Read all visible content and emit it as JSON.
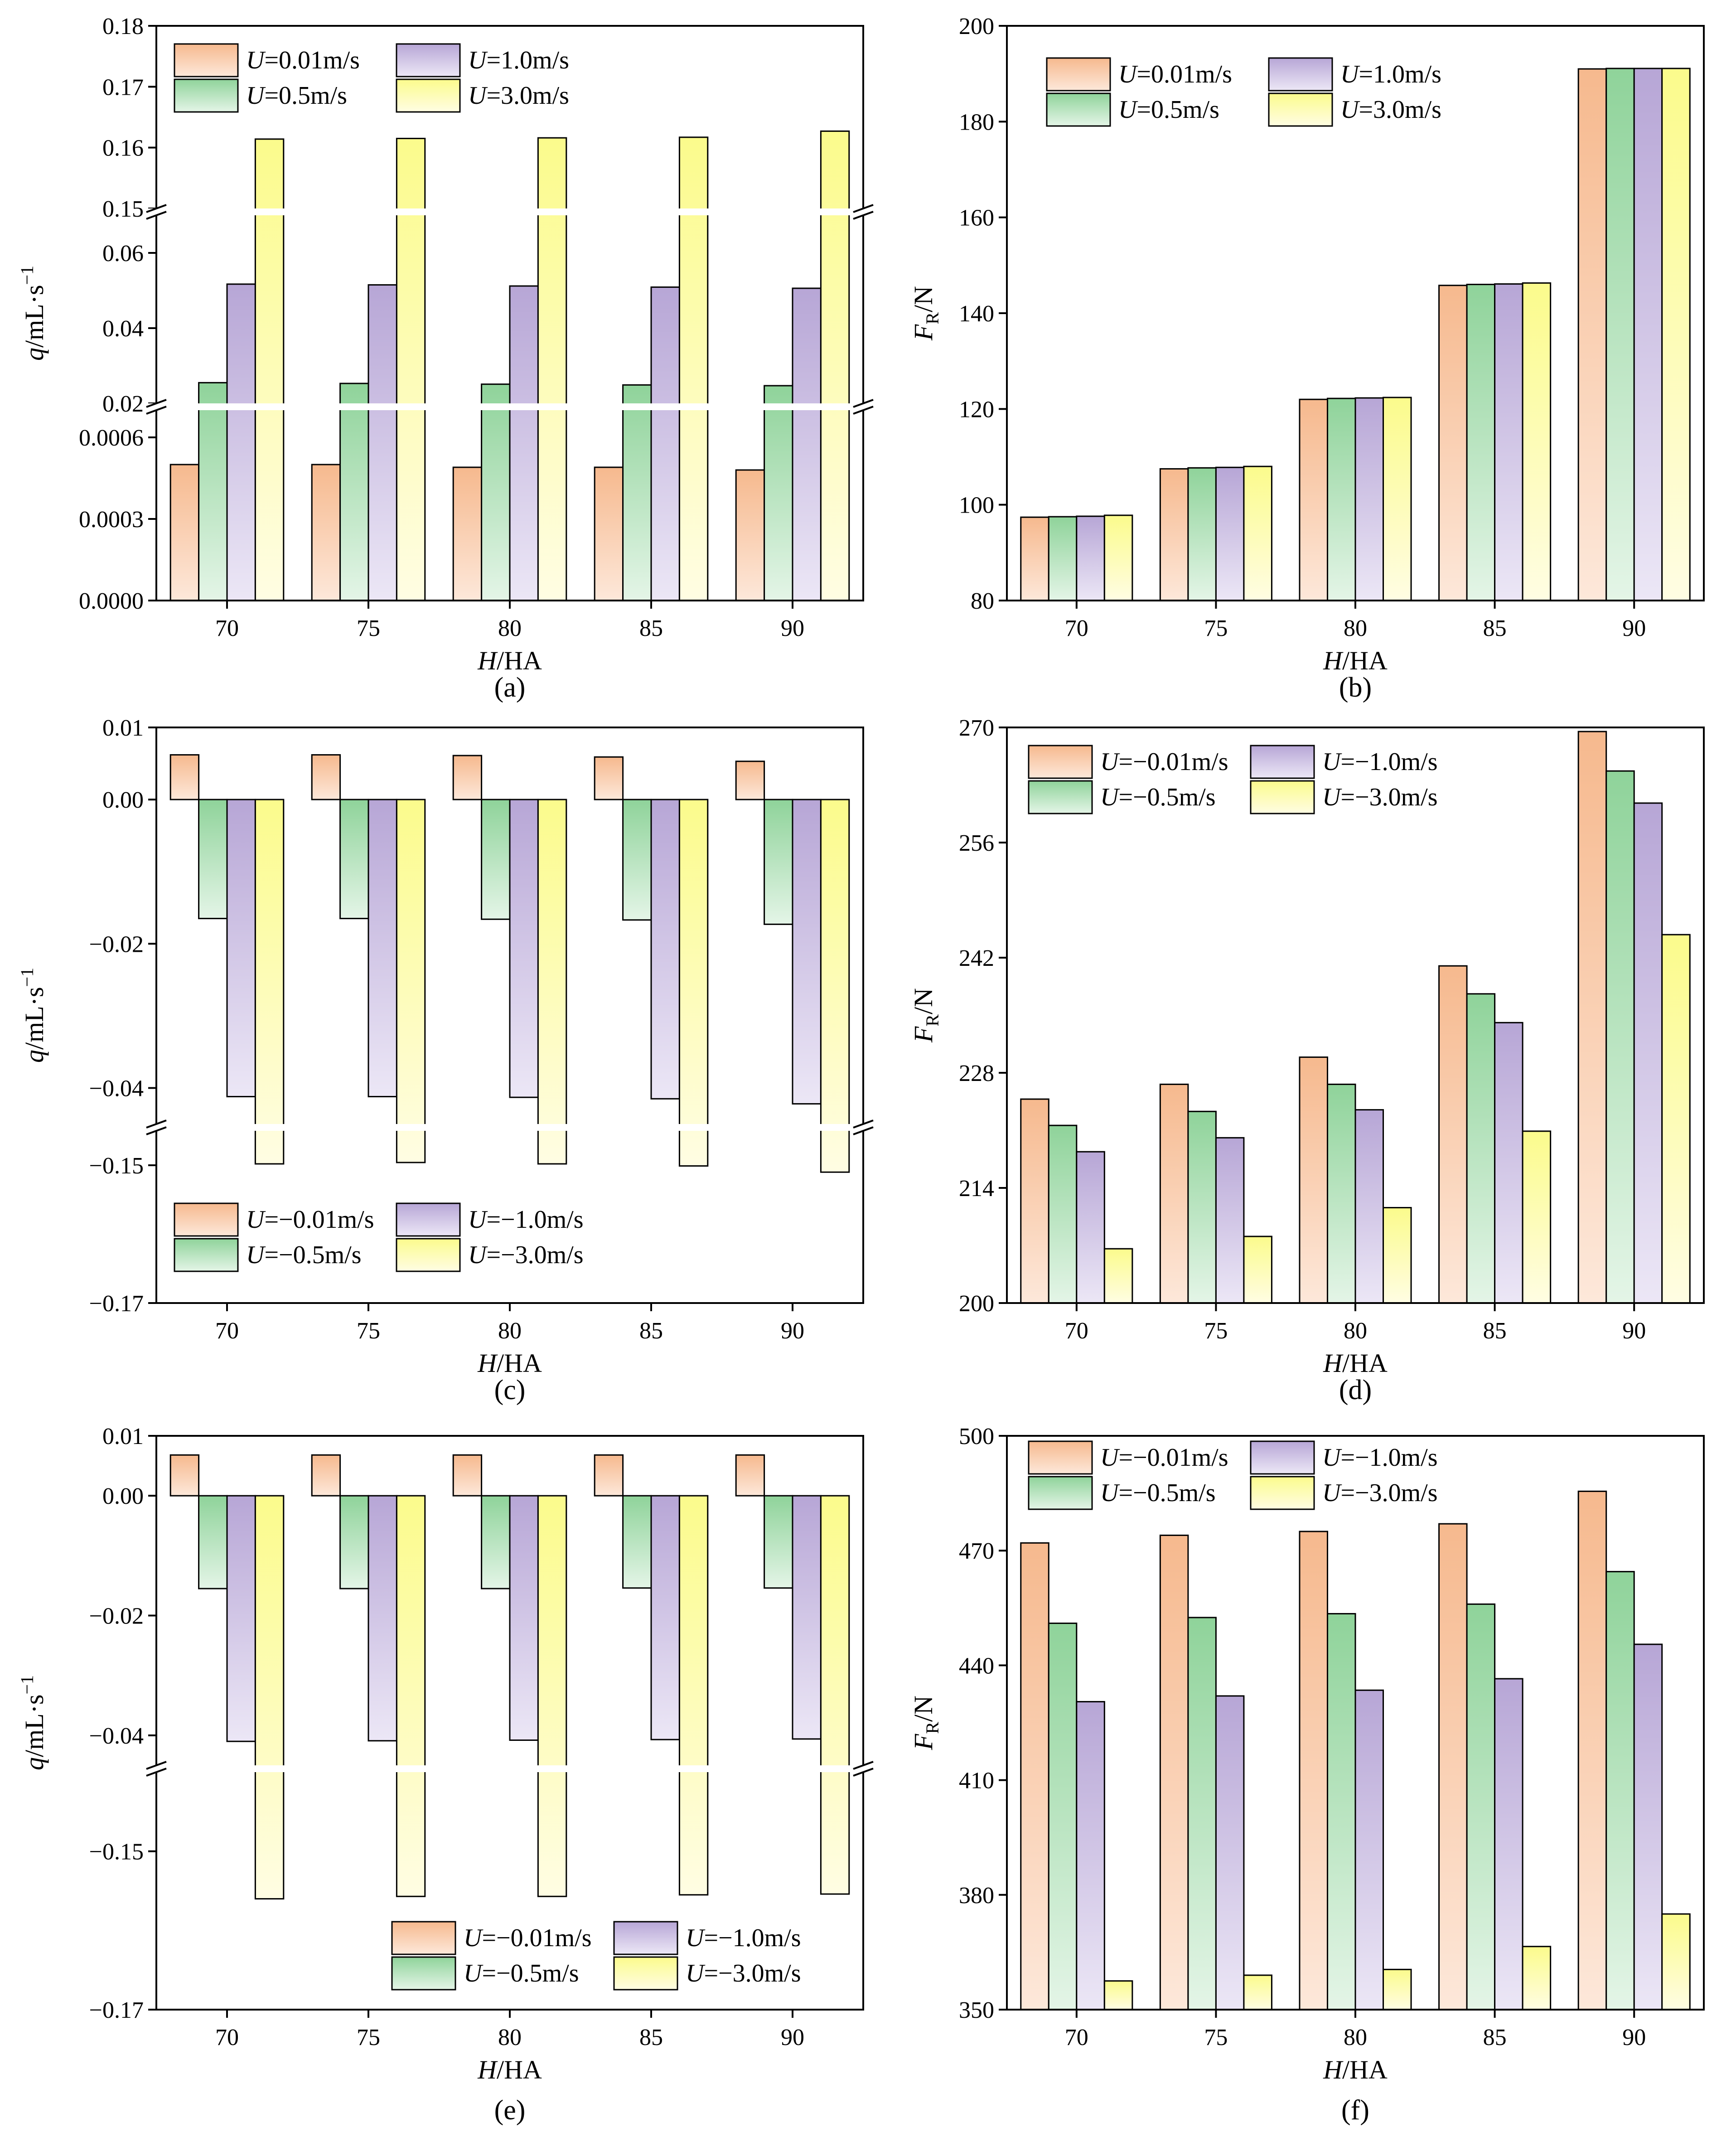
{
  "figure": {
    "fill_colors": {
      "U0.01": [
        "#f6b98e",
        "#fde8da"
      ],
      "U0.5": [
        "#8fd39a",
        "#e4f5e7"
      ],
      "U1.0": [
        "#b7a6d6",
        "#ece7f6"
      ],
      "U3.0": [
        "#fbfb8c",
        "#fffde3"
      ]
    }
  },
  "chart_data": [
    {
      "id": "a",
      "type": "bar",
      "caption": "(a)",
      "xlabel": "H/HA",
      "ylabel": "q/mL·s−1",
      "categories": [
        "70",
        "75",
        "80",
        "85",
        "90"
      ],
      "broken_axis": true,
      "ylim_segments": [
        [
          0,
          0.0007
        ],
        [
          0.02,
          0.07
        ],
        [
          0.15,
          0.18
        ]
      ],
      "yticks": [
        "0.0000",
        "0.0003",
        "0.0006",
        "0.02",
        "0.04",
        "0.06",
        "0.15",
        "0.16",
        "0.17",
        "0.18"
      ],
      "legend_position": "top-left",
      "series": [
        {
          "name": "U=0.01m/s",
          "values": [
            0.0005,
            0.0005,
            0.00049,
            0.00049,
            0.00048
          ]
        },
        {
          "name": "U=0.5m/s",
          "values": [
            0.0255,
            0.0253,
            0.0251,
            0.0249,
            0.0247
          ]
        },
        {
          "name": "U=1.0m/s",
          "values": [
            0.0517,
            0.0515,
            0.0512,
            0.0509,
            0.0506
          ]
        },
        {
          "name": "U=3.0m/s",
          "values": [
            0.1614,
            0.1615,
            0.1616,
            0.1617,
            0.1627
          ]
        }
      ]
    },
    {
      "id": "b",
      "type": "bar",
      "caption": "(b)",
      "xlabel": "H/HA",
      "ylabel": "FR/N",
      "categories": [
        "70",
        "75",
        "80",
        "85",
        "90"
      ],
      "ylim": [
        80,
        200
      ],
      "yticks": [
        "80",
        "100",
        "120",
        "140",
        "160",
        "180",
        "200"
      ],
      "legend_position": "top-left",
      "series": [
        {
          "name": "U=0.01m/s",
          "values": [
            97.4,
            107.5,
            122.0,
            145.8,
            191.0
          ]
        },
        {
          "name": "U=0.5m/s",
          "values": [
            97.5,
            107.7,
            122.2,
            146.0,
            191.1
          ]
        },
        {
          "name": "U=1.0m/s",
          "values": [
            97.6,
            107.8,
            122.3,
            146.1,
            191.1
          ]
        },
        {
          "name": "U=3.0m/s",
          "values": [
            97.8,
            108.0,
            122.4,
            146.3,
            191.1
          ]
        }
      ]
    },
    {
      "id": "c",
      "type": "bar",
      "caption": "(c)",
      "xlabel": "H/HA",
      "ylabel": "q/mL·s−1",
      "categories": [
        "70",
        "75",
        "80",
        "85",
        "90"
      ],
      "broken_axis": true,
      "ylim_segments": [
        [
          -0.17,
          -0.145
        ],
        [
          -0.045,
          0.01
        ]
      ],
      "yticks": [
        "0.01",
        "0.00",
        "−0.02",
        "−0.04",
        "−0.15",
        "−0.17"
      ],
      "legend_position": "bottom-left",
      "series": [
        {
          "name": "U=−0.01m/s",
          "values": [
            0.0062,
            0.0062,
            0.0061,
            0.0059,
            0.0053
          ]
        },
        {
          "name": "U=−0.5m/s",
          "values": [
            -0.0165,
            -0.0165,
            -0.0166,
            -0.0167,
            -0.0173
          ]
        },
        {
          "name": "U=−1.0m/s",
          "values": [
            -0.0412,
            -0.0412,
            -0.0413,
            -0.0415,
            -0.0422
          ]
        },
        {
          "name": "U=−3.0m/s",
          "values": [
            -0.1498,
            -0.1496,
            -0.1498,
            -0.1501,
            -0.151
          ]
        }
      ]
    },
    {
      "id": "d",
      "type": "bar",
      "caption": "(d)",
      "xlabel": "H/HA",
      "ylabel": "FR/N",
      "categories": [
        "70",
        "75",
        "80",
        "85",
        "90"
      ],
      "ylim": [
        200,
        270
      ],
      "yticks": [
        "200",
        "214",
        "228",
        "242",
        "256",
        "270"
      ],
      "legend_position": "top-left",
      "series": [
        {
          "name": "U=−0.01m/s",
          "values": [
            224.8,
            226.6,
            229.9,
            241.0,
            269.5
          ]
        },
        {
          "name": "U=−0.5m/s",
          "values": [
            221.6,
            223.3,
            226.6,
            237.6,
            264.7
          ]
        },
        {
          "name": "U=−1.0m/s",
          "values": [
            218.4,
            220.1,
            223.5,
            234.1,
            260.8
          ]
        },
        {
          "name": "U=−3.0m/s",
          "values": [
            206.6,
            208.1,
            211.6,
            220.9,
            244.8
          ]
        }
      ]
    },
    {
      "id": "e",
      "type": "bar",
      "caption": "(e)",
      "xlabel": "H/HA",
      "ylabel": "q/mL·s−1",
      "categories": [
        "70",
        "75",
        "80",
        "85",
        "90"
      ],
      "broken_axis": true,
      "ylim_segments": [
        [
          -0.17,
          -0.14
        ],
        [
          -0.045,
          0.01
        ]
      ],
      "yticks": [
        "0.01",
        "0.00",
        "−0.02",
        "−0.04",
        "−0.15",
        "−0.17"
      ],
      "legend_position": "bottom-right",
      "series": [
        {
          "name": "U=−0.01m/s",
          "values": [
            0.0068,
            0.0068,
            0.0068,
            0.0068,
            0.0068
          ]
        },
        {
          "name": "U=−0.5m/s",
          "values": [
            -0.0155,
            -0.0155,
            -0.0155,
            -0.0154,
            -0.0154
          ]
        },
        {
          "name": "U=−1.0m/s",
          "values": [
            -0.041,
            -0.0409,
            -0.0408,
            -0.0407,
            -0.0406
          ]
        },
        {
          "name": "U=−3.0m/s",
          "values": [
            -0.156,
            -0.1557,
            -0.1557,
            -0.1555,
            -0.1554
          ]
        }
      ]
    },
    {
      "id": "f",
      "type": "bar",
      "caption": "(f)",
      "xlabel": "H/HA",
      "ylabel": "FR/N",
      "categories": [
        "70",
        "75",
        "80",
        "85",
        "90"
      ],
      "ylim": [
        350,
        500
      ],
      "yticks": [
        "350",
        "380",
        "410",
        "440",
        "470",
        "500"
      ],
      "legend_position": "top-left",
      "series": [
        {
          "name": "U=−0.01m/s",
          "values": [
            472.0,
            474.0,
            475.0,
            477.0,
            485.5
          ]
        },
        {
          "name": "U=−0.5m/s",
          "values": [
            451.0,
            452.5,
            453.5,
            456.0,
            464.5
          ]
        },
        {
          "name": "U=−1.0m/s",
          "values": [
            430.5,
            432.0,
            433.5,
            436.5,
            445.5
          ]
        },
        {
          "name": "U=−3.0m/s",
          "values": [
            357.5,
            359.0,
            360.5,
            366.5,
            375.0
          ]
        }
      ]
    }
  ]
}
